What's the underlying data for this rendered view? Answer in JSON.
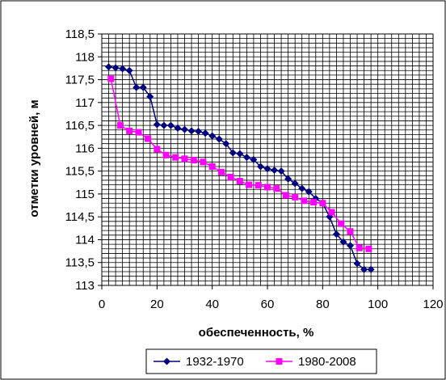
{
  "chart_data": {
    "type": "line",
    "xlabel": "обеспеченность, %",
    "ylabel": "отметки уровней, м",
    "xlim": [
      0,
      120
    ],
    "ylim": [
      113,
      118.5
    ],
    "x_ticks": [
      "0",
      "20",
      "40",
      "60",
      "80",
      "100",
      "120"
    ],
    "y_ticks": [
      "113",
      "113,5",
      "114",
      "114,5",
      "115",
      "115,5",
      "116",
      "116,5",
      "117",
      "117,5",
      "118",
      "118,5"
    ],
    "grid": true,
    "legend_position": "bottom",
    "series": [
      {
        "name": "1932-1970",
        "color": "#00007f",
        "marker": "diamond",
        "x": [
          2.5,
          5,
          7.5,
          10,
          12.5,
          15,
          17.5,
          20,
          22.5,
          25,
          27.5,
          30,
          32.5,
          35,
          37.5,
          40,
          42.5,
          45,
          47.5,
          50,
          52.5,
          55,
          57.5,
          60,
          62.5,
          65,
          67.5,
          70,
          72.5,
          75,
          77.5,
          80,
          82.5,
          85,
          87.5,
          90,
          92.5,
          95,
          97.5
        ],
        "y": [
          117.78,
          117.76,
          117.74,
          117.7,
          117.33,
          117.33,
          117.13,
          116.52,
          116.5,
          116.5,
          116.44,
          116.41,
          116.38,
          116.37,
          116.33,
          116.27,
          116.2,
          116.1,
          115.9,
          115.88,
          115.8,
          115.75,
          115.6,
          115.55,
          115.52,
          115.5,
          115.33,
          115.23,
          115.12,
          115.05,
          114.9,
          114.8,
          114.5,
          114.12,
          113.95,
          113.87,
          113.48,
          113.35,
          113.35
        ]
      },
      {
        "name": "1980-2008",
        "color": "#ff00ff",
        "marker": "square",
        "x": [
          3.3,
          6.7,
          10,
          13.3,
          16.7,
          20,
          23.3,
          26.7,
          30,
          33.3,
          36.7,
          40,
          43.3,
          46.7,
          50,
          53.3,
          56.7,
          60,
          63.3,
          66.7,
          70,
          73.3,
          76.7,
          80,
          83.3,
          86.7,
          90,
          93.3,
          96.7
        ],
        "y": [
          117.52,
          116.5,
          116.38,
          116.35,
          116.21,
          115.98,
          115.85,
          115.8,
          115.77,
          115.74,
          115.7,
          115.6,
          115.48,
          115.37,
          115.28,
          115.2,
          115.19,
          115.15,
          115.12,
          114.97,
          114.93,
          114.85,
          114.82,
          114.8,
          114.6,
          114.35,
          114.18,
          113.82,
          113.8
        ]
      }
    ]
  }
}
